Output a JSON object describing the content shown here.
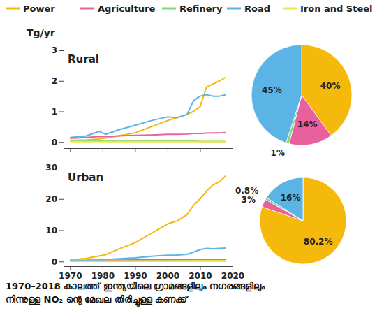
{
  "chart_data": [
    {
      "type": "line",
      "title": "Rural",
      "y_label": "Tg/yr",
      "legend": "top",
      "tick_labels": "y",
      "x": [
        1970,
        1975,
        1979,
        1981,
        1985,
        1990,
        1995,
        2000,
        2003,
        2006,
        2008,
        2010,
        2012,
        2014,
        2016,
        2018
      ],
      "xlim": [
        1968,
        2020
      ],
      "xticks": [
        1970,
        1980,
        1990,
        2000,
        2010,
        2020
      ],
      "ylim": [
        -0.2,
        3
      ],
      "yticks": [
        0,
        1,
        2,
        3
      ],
      "series": [
        {
          "name": "Power",
          "color": "#f5b90c",
          "values": [
            0.05,
            0.07,
            0.1,
            0.13,
            0.2,
            0.3,
            0.5,
            0.7,
            0.8,
            0.9,
            1.0,
            1.15,
            1.8,
            1.9,
            2.0,
            2.12
          ]
        },
        {
          "name": "Agriculture",
          "color": "#e8609e",
          "values": [
            0.12,
            0.15,
            0.18,
            0.18,
            0.2,
            0.22,
            0.23,
            0.25,
            0.25,
            0.26,
            0.28,
            0.28,
            0.29,
            0.3,
            0.3,
            0.31
          ]
        },
        {
          "name": "Refinery",
          "color": "#7fd67f",
          "values": [
            0.03,
            0.03,
            0.03,
            0.03,
            0.03,
            0.03,
            0.03,
            0.03,
            0.03,
            0.03,
            0.03,
            0.02,
            0.02,
            0.02,
            0.02,
            0.02
          ]
        },
        {
          "name": "Road",
          "color": "#5ab4e5",
          "values": [
            0.15,
            0.2,
            0.35,
            0.25,
            0.4,
            0.55,
            0.7,
            0.82,
            0.8,
            0.9,
            1.35,
            1.5,
            1.55,
            1.5,
            1.5,
            1.55
          ]
        },
        {
          "name": "Iron and Steel",
          "color": "#f0e44a",
          "values": [
            0.01,
            0.01,
            0.01,
            0.01,
            0.01,
            0.01,
            0.01,
            0.01,
            0.01,
            0.01,
            0.01,
            0.01,
            0.01,
            0.01,
            0.01,
            0.01
          ]
        }
      ]
    },
    {
      "type": "pie",
      "values": [
        40,
        14,
        1,
        45
      ],
      "colors": [
        "#f5b90c",
        "#e8609e",
        "#7fd67f",
        "#5ab4e5"
      ],
      "value_labels": [
        "40%",
        "14%",
        "1%",
        "45%"
      ],
      "data_labels": true
    },
    {
      "type": "line",
      "title": "Urban",
      "x": [
        1970,
        1975,
        1979,
        1981,
        1985,
        1990,
        1995,
        2000,
        2003,
        2006,
        2008,
        2010,
        2012,
        2014,
        2016,
        2018
      ],
      "xlim": [
        1968,
        2020
      ],
      "xticks": [
        1970,
        1980,
        1990,
        2000,
        2010,
        2020
      ],
      "ylim": [
        -1.5,
        30
      ],
      "yticks": [
        0,
        10,
        20,
        30
      ],
      "series": [
        {
          "name": "Power",
          "color": "#f5b90c",
          "values": [
            0.5,
            1.0,
            1.8,
            2.2,
            4.0,
            6.0,
            9.0,
            12.0,
            13.0,
            15.0,
            18.0,
            20.0,
            22.5,
            24.5,
            25.5,
            27.5
          ]
        },
        {
          "name": "Agriculture",
          "color": "#e8609e",
          "values": [
            0.3,
            0.35,
            0.4,
            0.4,
            0.45,
            0.5,
            0.5,
            0.55,
            0.55,
            0.6,
            0.6,
            0.6,
            0.6,
            0.6,
            0.6,
            0.6
          ]
        },
        {
          "name": "Refinery",
          "color": "#7fd67f",
          "values": [
            0.1,
            0.1,
            0.1,
            0.1,
            0.1,
            0.15,
            0.15,
            0.15,
            0.15,
            0.2,
            0.2,
            0.2,
            0.2,
            0.2,
            0.2,
            0.2
          ]
        },
        {
          "name": "Road",
          "color": "#5ab4e5",
          "values": [
            0.3,
            0.4,
            0.5,
            0.6,
            0.9,
            1.2,
            1.7,
            2.0,
            2.1,
            2.3,
            3.0,
            3.8,
            4.2,
            4.1,
            4.2,
            4.3
          ]
        },
        {
          "name": "Iron and Steel",
          "color": "#f0e44a",
          "values": [
            0.1,
            0.1,
            0.1,
            0.15,
            0.15,
            0.2,
            0.2,
            0.2,
            0.25,
            0.25,
            0.25,
            0.3,
            0.3,
            0.3,
            0.3,
            0.3
          ]
        }
      ]
    },
    {
      "type": "pie",
      "values": [
        80.2,
        3,
        0.8,
        16
      ],
      "colors": [
        "#f5b90c",
        "#e8609e",
        "#7fd67f",
        "#5ab4e5"
      ],
      "value_labels": [
        "80.2%",
        "3%",
        "0.8%",
        "16%"
      ],
      "data_labels": true
    }
  ],
  "caption": [
    "1970–2018 കാലത്ത് ഇന്ത്യയിലെ ഗ്രാമങ്ങളിലും നഗരങ്ങളിലും",
    "നിന്നുള്ള NO₂ ന്റെ മേഖല തിരിച്ചുള്ള കണക്ക്"
  ]
}
